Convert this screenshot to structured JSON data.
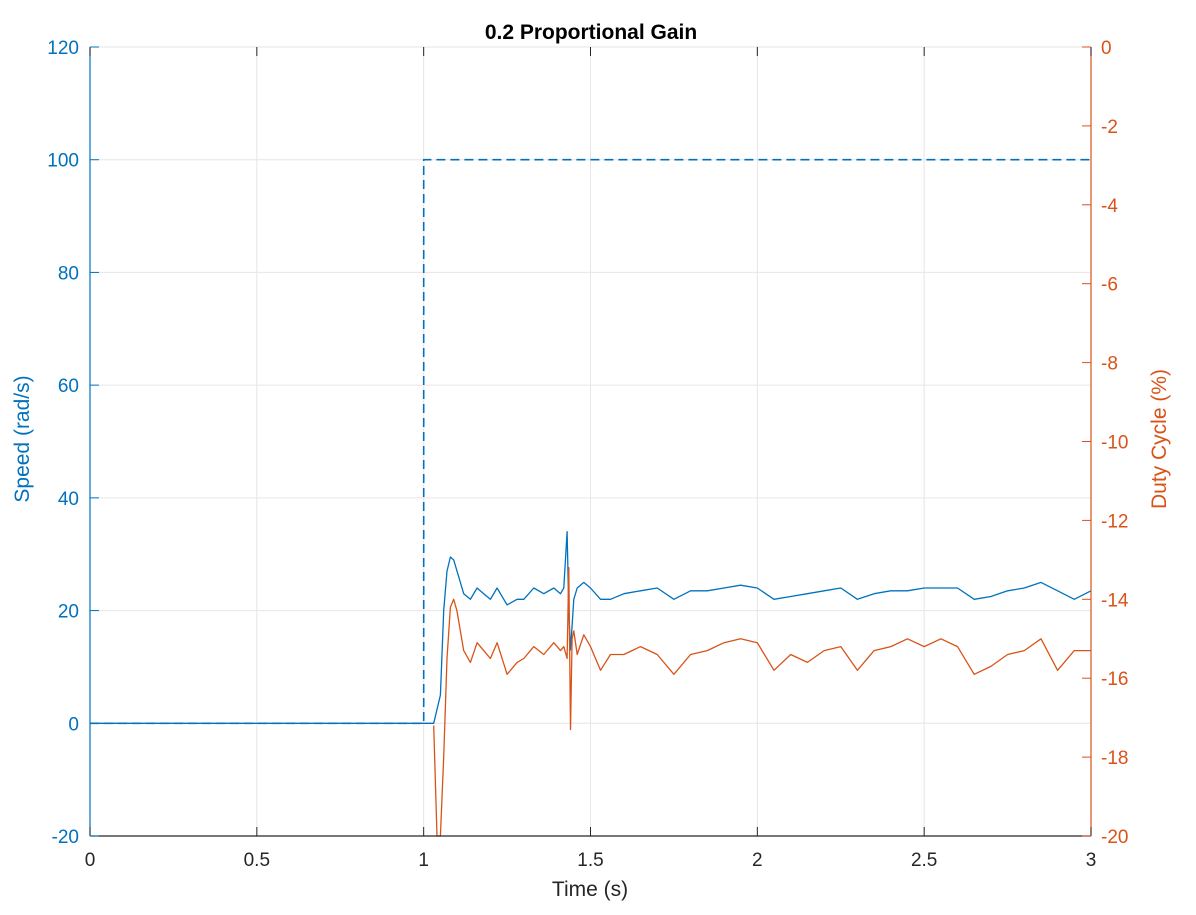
{
  "chart_data": {
    "type": "line",
    "title": "0.2 Proportional Gain",
    "xlabel": "Time (s)",
    "ylabel_left": "Speed (rad/s)",
    "ylabel_right": "Duty Cycle (%)",
    "xlim": [
      0,
      3
    ],
    "ylim_left": [
      -20,
      120
    ],
    "ylim_right": [
      -20,
      0
    ],
    "x_ticks": [
      "0",
      "0.5",
      "1",
      "1.5",
      "2",
      "2.5",
      "3"
    ],
    "y_left_ticks": [
      "-20",
      "0",
      "20",
      "40",
      "60",
      "80",
      "100",
      "120"
    ],
    "y_right_ticks": [
      "-20",
      "-18",
      "-16",
      "-14",
      "-12",
      "-10",
      "-8",
      "-6",
      "-4",
      "-2",
      "0"
    ],
    "grid": true,
    "colors": {
      "left_axis": "#0072BD",
      "right_axis": "#D95319",
      "grid": "#e6e6e6"
    },
    "series": [
      {
        "axis": "left",
        "style": "dashed",
        "color": "#0072BD",
        "x": [
          0,
          1.0,
          1.0,
          3.0
        ],
        "y": [
          0,
          0,
          100,
          100
        ]
      },
      {
        "axis": "left",
        "style": "solid",
        "color": "#0072BD",
        "x": [
          0,
          1.03,
          1.05,
          1.06,
          1.07,
          1.08,
          1.09,
          1.1,
          1.12,
          1.14,
          1.16,
          1.18,
          1.2,
          1.22,
          1.25,
          1.28,
          1.3,
          1.33,
          1.36,
          1.39,
          1.41,
          1.42,
          1.43,
          1.435,
          1.44,
          1.45,
          1.46,
          1.48,
          1.5,
          1.53,
          1.56,
          1.6,
          1.65,
          1.7,
          1.75,
          1.8,
          1.85,
          1.9,
          1.95,
          2.0,
          2.05,
          2.1,
          2.15,
          2.2,
          2.25,
          2.3,
          2.35,
          2.4,
          2.45,
          2.5,
          2.55,
          2.6,
          2.65,
          2.7,
          2.75,
          2.8,
          2.85,
          2.9,
          2.95,
          3.0
        ],
        "y": [
          0,
          0,
          5,
          20,
          27,
          29.5,
          29,
          27,
          23,
          22,
          24,
          23,
          22,
          24,
          21,
          22,
          22,
          24,
          23,
          24,
          23,
          24,
          34,
          20,
          13,
          22,
          24,
          25,
          24,
          22,
          22,
          23,
          23.5,
          24,
          22,
          23.5,
          23.5,
          24,
          24.5,
          24,
          22,
          22.5,
          23,
          23.5,
          24,
          22,
          23,
          23.5,
          23.5,
          24,
          24,
          24,
          22,
          22.5,
          23.5,
          24,
          25,
          23.5,
          22,
          23.5
        ]
      },
      {
        "axis": "right",
        "style": "solid",
        "color": "#D95319",
        "x": [
          1.03,
          1.04,
          1.05,
          1.06,
          1.07,
          1.08,
          1.09,
          1.1,
          1.12,
          1.14,
          1.16,
          1.18,
          1.2,
          1.22,
          1.25,
          1.28,
          1.3,
          1.33,
          1.36,
          1.39,
          1.41,
          1.42,
          1.43,
          1.435,
          1.44,
          1.445,
          1.45,
          1.46,
          1.48,
          1.5,
          1.53,
          1.56,
          1.6,
          1.65,
          1.7,
          1.75,
          1.8,
          1.85,
          1.9,
          1.95,
          2.0,
          2.05,
          2.1,
          2.15,
          2.2,
          2.25,
          2.3,
          2.35,
          2.4,
          2.45,
          2.5,
          2.55,
          2.6,
          2.65,
          2.7,
          2.75,
          2.8,
          2.85,
          2.9,
          2.95,
          3.0
        ],
        "y": [
          -17.2,
          -20,
          -20,
          -18,
          -15.5,
          -14.2,
          -14.0,
          -14.3,
          -15.3,
          -15.6,
          -15.1,
          -15.3,
          -15.5,
          -15.1,
          -15.9,
          -15.6,
          -15.5,
          -15.2,
          -15.4,
          -15.1,
          -15.3,
          -15.2,
          -15.5,
          -13.2,
          -17.3,
          -15.0,
          -14.8,
          -15.4,
          -14.9,
          -15.2,
          -15.8,
          -15.4,
          -15.4,
          -15.2,
          -15.4,
          -15.9,
          -15.4,
          -15.3,
          -15.1,
          -15.0,
          -15.1,
          -15.8,
          -15.4,
          -15.6,
          -15.3,
          -15.2,
          -15.8,
          -15.3,
          -15.2,
          -15.0,
          -15.2,
          -15.0,
          -15.2,
          -15.9,
          -15.7,
          -15.4,
          -15.3,
          -15.0,
          -15.8,
          -15.3,
          -15.3
        ]
      }
    ]
  }
}
